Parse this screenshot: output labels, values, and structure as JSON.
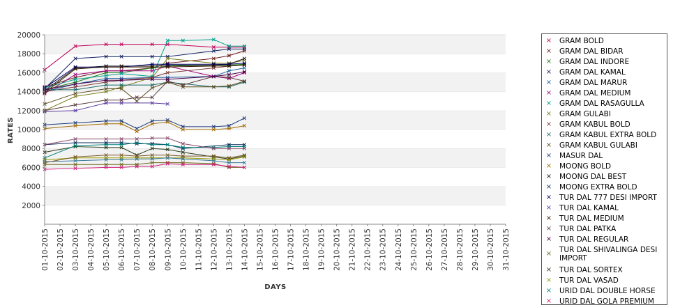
{
  "chart_data": {
    "type": "line",
    "title": "",
    "xlabel": "DAYS",
    "ylabel": "RATES",
    "ylim": [
      0,
      20000
    ],
    "yticks": [
      2000,
      4000,
      6000,
      8000,
      10000,
      12000,
      14000,
      16000,
      18000,
      20000
    ],
    "grid": "alternating horizontal bands",
    "legend_position": "right",
    "categories": [
      "01-10-2015",
      "02-10-2015",
      "03-10-2015",
      "04-10-2015",
      "05-10-2015",
      "06-10-2015",
      "07-10-2015",
      "08-10-2015",
      "09-10-2015",
      "10-10-2015",
      "11-10-2015",
      "12-10-2015",
      "13-10-2015",
      "14-10-2015",
      "15-10-2015",
      "16-10-2015",
      "17-10-2015",
      "18-10-2015",
      "19-10-2015",
      "20-10-2015",
      "21-10-2015",
      "22-10-2015",
      "23-10-2015",
      "24-10-2015",
      "25-10-2015",
      "26-10-2015",
      "27-10-2015",
      "28-10-2015",
      "29-10-2015",
      "30-10-2015",
      "31-10-2015"
    ],
    "series": [
      {
        "name": "GRAM BOLD",
        "color": "#c0005a",
        "points": [
          [
            0,
            16300
          ],
          [
            2,
            18800
          ],
          [
            4,
            19000
          ],
          [
            5,
            19000
          ],
          [
            7,
            19000
          ],
          [
            8,
            19000
          ],
          [
            11,
            18700
          ],
          [
            12,
            18700
          ],
          [
            13,
            18700
          ]
        ]
      },
      {
        "name": "GRAM DAL BIDAR",
        "color": "#6b1a1a",
        "points": [
          [
            0,
            14500
          ],
          [
            2,
            15500
          ],
          [
            4,
            16200
          ],
          [
            5,
            16200
          ],
          [
            7,
            16500
          ],
          [
            8,
            17000
          ],
          [
            11,
            17500
          ],
          [
            12,
            17800
          ],
          [
            13,
            18300
          ]
        ]
      },
      {
        "name": "GRAM DAL INDORE",
        "color": "#1a7a1a",
        "points": [
          [
            0,
            14200
          ],
          [
            2,
            15000
          ],
          [
            4,
            16000
          ],
          [
            5,
            16000
          ],
          [
            7,
            16500
          ],
          [
            8,
            16700
          ],
          [
            11,
            16800
          ],
          [
            12,
            16800
          ],
          [
            13,
            16900
          ]
        ]
      },
      {
        "name": "GRAM DAL KAMAL",
        "color": "#102060",
        "points": [
          [
            0,
            14300
          ],
          [
            2,
            17500
          ],
          [
            4,
            17700
          ],
          [
            5,
            17700
          ],
          [
            7,
            17700
          ],
          [
            8,
            17700
          ],
          [
            11,
            18300
          ],
          [
            12,
            18500
          ],
          [
            13,
            18500
          ]
        ]
      },
      {
        "name": "GRAM DAL MARUR",
        "color": "#1f5fa0",
        "points": [
          [
            0,
            14000
          ],
          [
            2,
            14800
          ],
          [
            4,
            15400
          ],
          [
            5,
            15400
          ],
          [
            7,
            15500
          ],
          [
            8,
            15500
          ],
          [
            11,
            15600
          ],
          [
            12,
            16200
          ],
          [
            13,
            16500
          ]
        ]
      },
      {
        "name": "GRAM DAL MEDIUM",
        "color": "#a0007a",
        "points": [
          [
            0,
            13800
          ],
          [
            2,
            15800
          ],
          [
            4,
            16200
          ],
          [
            5,
            16200
          ],
          [
            7,
            16200
          ],
          [
            8,
            16700
          ],
          [
            11,
            15600
          ],
          [
            12,
            15400
          ],
          [
            13,
            16000
          ]
        ]
      },
      {
        "name": "GRAM DAL RASAGULLA",
        "color": "#00a08a",
        "points": [
          [
            0,
            14400
          ],
          [
            2,
            15300
          ],
          [
            4,
            15700
          ],
          [
            5,
            15900
          ],
          [
            7,
            15600
          ],
          [
            8,
            19400
          ],
          [
            9,
            19400
          ],
          [
            11,
            19500
          ],
          [
            12,
            18800
          ],
          [
            13,
            18800
          ]
        ]
      },
      {
        "name": "GRAM GULABI",
        "color": "#7a7a1a",
        "points": [
          [
            0,
            12000
          ],
          [
            2,
            13500
          ],
          [
            4,
            14000
          ],
          [
            5,
            14500
          ],
          [
            7,
            15500
          ],
          [
            8,
            17500
          ],
          [
            11,
            17000
          ],
          [
            12,
            17000
          ],
          [
            13,
            17300
          ]
        ]
      },
      {
        "name": "GRAM KABUL BOLD",
        "color": "#7a3a3a",
        "points": [
          [
            0,
            14000
          ],
          [
            2,
            14500
          ],
          [
            4,
            15000
          ],
          [
            5,
            15200
          ],
          [
            7,
            15500
          ],
          [
            8,
            16000
          ],
          [
            11,
            16500
          ],
          [
            12,
            16700
          ],
          [
            13,
            16800
          ]
        ]
      },
      {
        "name": "GRAM KABUL EXTRA BOLD",
        "color": "#1a6a6a",
        "points": [
          [
            0,
            14200
          ],
          [
            2,
            14200
          ],
          [
            4,
            14700
          ],
          [
            5,
            14700
          ],
          [
            7,
            14700
          ],
          [
            8,
            15000
          ],
          [
            11,
            14500
          ],
          [
            12,
            14500
          ],
          [
            13,
            15000
          ]
        ]
      },
      {
        "name": "GRAM KABUL GULABI",
        "color": "#5a4a1a",
        "points": [
          [
            0,
            12700
          ],
          [
            2,
            13800
          ],
          [
            4,
            14300
          ],
          [
            5,
            14300
          ],
          [
            6,
            13000
          ],
          [
            7,
            14400
          ],
          [
            8,
            15000
          ],
          [
            9,
            14500
          ],
          [
            11,
            14500
          ],
          [
            12,
            14600
          ],
          [
            13,
            15100
          ]
        ]
      },
      {
        "name": "MASUR DAL",
        "color": "#1a3a7a",
        "points": [
          [
            0,
            10500
          ],
          [
            2,
            10700
          ],
          [
            4,
            10900
          ],
          [
            5,
            10900
          ],
          [
            6,
            10100
          ],
          [
            7,
            10900
          ],
          [
            8,
            11000
          ],
          [
            9,
            10300
          ],
          [
            11,
            10300
          ],
          [
            12,
            10400
          ],
          [
            13,
            11200
          ]
        ]
      },
      {
        "name": "MOONG BOLD",
        "color": "#a06a00",
        "points": [
          [
            0,
            10100
          ],
          [
            2,
            10400
          ],
          [
            4,
            10600
          ],
          [
            5,
            10600
          ],
          [
            6,
            9800
          ],
          [
            7,
            10600
          ],
          [
            8,
            10800
          ],
          [
            9,
            10000
          ],
          [
            11,
            10000
          ],
          [
            12,
            10100
          ],
          [
            13,
            10400
          ]
        ]
      },
      {
        "name": "MOONG DAL BEST",
        "color": "#1a1a1a",
        "points": [
          [
            0,
            14100
          ],
          [
            2,
            16500
          ],
          [
            4,
            16700
          ],
          [
            5,
            16700
          ],
          [
            7,
            16700
          ],
          [
            8,
            16800
          ],
          [
            11,
            16800
          ],
          [
            12,
            16900
          ],
          [
            13,
            17500
          ]
        ]
      },
      {
        "name": "MOONG EXTRA BOLD",
        "color": "#0a2a5a",
        "points": [
          [
            0,
            8400
          ],
          [
            2,
            8600
          ],
          [
            4,
            8600
          ],
          [
            5,
            8600
          ],
          [
            6,
            8500
          ],
          [
            7,
            8500
          ],
          [
            8,
            8400
          ],
          [
            9,
            8000
          ],
          [
            12,
            8400
          ],
          [
            13,
            8400
          ]
        ]
      },
      {
        "name": "TUR DAL  777 DESI IMPORT",
        "color": "#00006a",
        "points": [
          [
            0,
            14400
          ],
          [
            2,
            16600
          ],
          [
            4,
            16600
          ],
          [
            5,
            16600
          ],
          [
            7,
            16900
          ],
          [
            8,
            16900
          ],
          [
            11,
            16900
          ],
          [
            12,
            16900
          ],
          [
            13,
            17000
          ]
        ]
      },
      {
        "name": "TUR DAL KAMAL",
        "color": "#5a3aa0",
        "points": [
          [
            0,
            11900
          ],
          [
            2,
            12000
          ],
          [
            4,
            12800
          ],
          [
            5,
            12800
          ],
          [
            7,
            12800
          ],
          [
            8,
            12700
          ]
        ]
      },
      {
        "name": "TUR DAL MEDIUM",
        "color": "#3a1a00",
        "points": [
          [
            0,
            13900
          ],
          [
            2,
            16400
          ],
          [
            4,
            16600
          ],
          [
            5,
            16600
          ],
          [
            7,
            16600
          ],
          [
            8,
            16600
          ],
          [
            11,
            16700
          ],
          [
            12,
            16700
          ],
          [
            13,
            16800
          ]
        ]
      },
      {
        "name": "TUR DAL PATKA",
        "color": "#5a3a3a",
        "points": [
          [
            0,
            12000
          ],
          [
            2,
            12600
          ],
          [
            4,
            13100
          ],
          [
            5,
            13100
          ],
          [
            6,
            13400
          ],
          [
            7,
            13400
          ],
          [
            8,
            15100
          ],
          [
            9,
            14700
          ],
          [
            11,
            15600
          ],
          [
            12,
            15500
          ],
          [
            13,
            15100
          ]
        ]
      },
      {
        "name": "TUR DAL REGULAR",
        "color": "#4a004a",
        "points": [
          [
            0,
            14200
          ],
          [
            2,
            14800
          ],
          [
            4,
            15200
          ],
          [
            5,
            15200
          ],
          [
            7,
            15300
          ],
          [
            8,
            15300
          ],
          [
            11,
            15600
          ],
          [
            12,
            15800
          ],
          [
            13,
            16100
          ]
        ]
      },
      {
        "name": "TUR DAL SHIVALINGA DESI IMPORT",
        "color": "#6a6a1a",
        "points": [
          [
            0,
            6300
          ],
          [
            2,
            6300
          ],
          [
            4,
            6300
          ],
          [
            5,
            6300
          ],
          [
            6,
            6300
          ],
          [
            7,
            6500
          ],
          [
            8,
            6500
          ],
          [
            9,
            6500
          ],
          [
            11,
            6400
          ],
          [
            12,
            6000
          ],
          [
            13,
            6000
          ]
        ]
      },
      {
        "name": "TUR DAL SORTEX",
        "color": "#2a3a1a",
        "points": [
          [
            0,
            7600
          ],
          [
            2,
            8200
          ],
          [
            4,
            8100
          ],
          [
            5,
            8100
          ],
          [
            6,
            7300
          ],
          [
            7,
            8000
          ],
          [
            8,
            7900
          ],
          [
            9,
            7600
          ],
          [
            11,
            7100
          ],
          [
            12,
            6900
          ],
          [
            13,
            7200
          ]
        ]
      },
      {
        "name": "TUR DAL VASAD",
        "color": "#9a9a00",
        "points": [
          [
            0,
            6800
          ],
          [
            2,
            7000
          ],
          [
            4,
            7000
          ],
          [
            5,
            7000
          ],
          [
            6,
            7000
          ],
          [
            7,
            7000
          ],
          [
            8,
            7000
          ],
          [
            9,
            7000
          ],
          [
            11,
            6900
          ],
          [
            12,
            6800
          ],
          [
            13,
            7100
          ]
        ]
      },
      {
        "name": "URID DAL DOUBLE HORSE",
        "color": "#00807a",
        "points": [
          [
            0,
            7000
          ],
          [
            2,
            8300
          ],
          [
            4,
            8400
          ],
          [
            5,
            8400
          ],
          [
            6,
            8600
          ],
          [
            7,
            8400
          ],
          [
            8,
            8400
          ],
          [
            9,
            8100
          ],
          [
            11,
            8100
          ],
          [
            12,
            8200
          ],
          [
            13,
            8200
          ]
        ]
      },
      {
        "name": "URID DAL GOLA PREMIUM",
        "color": "#d0207a",
        "points": [
          [
            0,
            5800
          ],
          [
            2,
            5900
          ],
          [
            4,
            6000
          ],
          [
            5,
            6000
          ],
          [
            6,
            6100
          ],
          [
            7,
            6100
          ],
          [
            8,
            6400
          ],
          [
            9,
            6300
          ],
          [
            11,
            6300
          ],
          [
            12,
            6100
          ],
          [
            13,
            6000
          ]
        ]
      },
      {
        "name": "",
        "color": "#8a4a6a",
        "points": [
          [
            0,
            8400
          ],
          [
            2,
            9000
          ],
          [
            4,
            9000
          ],
          [
            5,
            9000
          ],
          [
            6,
            9000
          ],
          [
            7,
            9100
          ],
          [
            8,
            9100
          ],
          [
            9,
            8500
          ],
          [
            11,
            8000
          ],
          [
            12,
            8000
          ],
          [
            13,
            8000
          ]
        ]
      },
      {
        "name": "",
        "color": "#3a7a9a",
        "points": [
          [
            0,
            6600
          ],
          [
            2,
            6700
          ],
          [
            4,
            6800
          ],
          [
            5,
            6800
          ],
          [
            6,
            6900
          ],
          [
            7,
            6900
          ],
          [
            8,
            7000
          ],
          [
            9,
            6900
          ],
          [
            11,
            6700
          ],
          [
            12,
            6500
          ],
          [
            13,
            6500
          ]
        ]
      },
      {
        "name": "",
        "color": "#7a5a2a",
        "points": [
          [
            0,
            6500
          ],
          [
            2,
            7100
          ],
          [
            4,
            7300
          ],
          [
            5,
            7300
          ],
          [
            6,
            7200
          ],
          [
            7,
            7300
          ],
          [
            8,
            7300
          ],
          [
            9,
            7200
          ],
          [
            11,
            7200
          ],
          [
            12,
            7000
          ],
          [
            13,
            7300
          ]
        ]
      }
    ]
  }
}
